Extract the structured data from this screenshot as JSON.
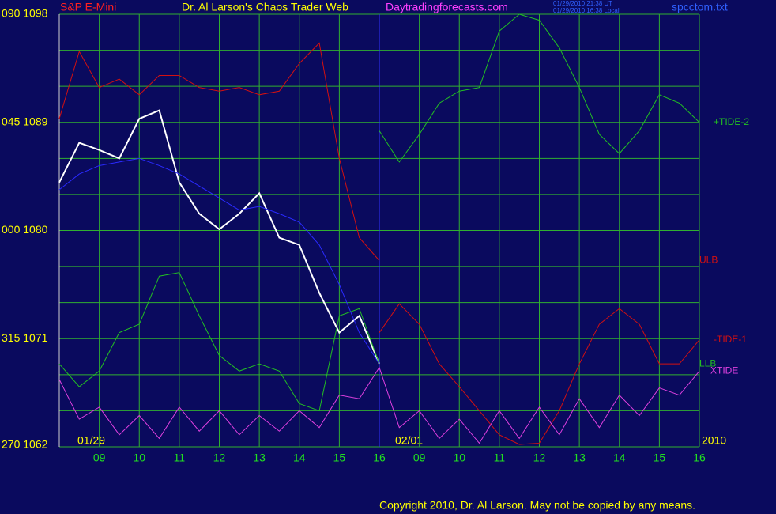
{
  "chart_data": {
    "type": "line",
    "title": "Dr. Al Larson's Chaos Trader Web",
    "instrument": "S&P E-Mini",
    "site": "Daytradingforecasts.com",
    "timestamps": [
      "01/29/2010 21:38 UT",
      "01/29/2010 16:38 Local"
    ],
    "file": "spcctom.txt",
    "copyright": "Copyright 2010, Dr. Al Larson. May not be copied by any means.",
    "date_labels": [
      "01/29",
      "02/01",
      "2010"
    ],
    "x": [
      0,
      0.5,
      1,
      1.5,
      2,
      2.5,
      3,
      3.5,
      4,
      4.5,
      5,
      5.5,
      6,
      6.5,
      7,
      7.5,
      8,
      8.5,
      9,
      9.5,
      10,
      10.5,
      11,
      11.5,
      12,
      12.5,
      13,
      13.5,
      14,
      14.5,
      15,
      15.5,
      16
    ],
    "xlim": [
      0,
      16
    ],
    "xticks": [
      {
        "value": 1,
        "label": "09"
      },
      {
        "value": 2,
        "label": "10"
      },
      {
        "value": 3,
        "label": "11"
      },
      {
        "value": 4,
        "label": "12"
      },
      {
        "value": 5,
        "label": "13"
      },
      {
        "value": 6,
        "label": "14"
      },
      {
        "value": 7,
        "label": "15"
      },
      {
        "value": 8,
        "label": "16"
      },
      {
        "value": 9,
        "label": "09"
      },
      {
        "value": 10,
        "label": "10"
      },
      {
        "value": 11,
        "label": "11"
      },
      {
        "value": 12,
        "label": "12"
      },
      {
        "value": 13,
        "label": "13"
      },
      {
        "value": 14,
        "label": "14"
      },
      {
        "value": 15,
        "label": "15"
      },
      {
        "value": 16,
        "label": "16"
      }
    ],
    "ylim": [
      1062,
      1098
    ],
    "yticks": [
      {
        "value": 1098,
        "label": "090 1098"
      },
      {
        "value": 1089,
        "label": "045 1089"
      },
      {
        "value": 1080,
        "label": "000 1080"
      },
      {
        "value": 1071,
        "label": "315 1071"
      },
      {
        "value": 1062,
        "label": "270 1062"
      }
    ],
    "ygrid": [
      1062,
      1065,
      1068,
      1071,
      1074,
      1077,
      1080,
      1083,
      1086,
      1089,
      1092,
      1095,
      1098
    ],
    "grid": true,
    "series": [
      {
        "color": "#ffffff",
        "values": [
          1084.0,
          1087.3,
          1086.7,
          1086.0,
          1089.3,
          1090.0,
          1084.0,
          1081.4,
          1080.1,
          1081.4,
          1083.1,
          1079.4,
          1078.8,
          1074.8,
          1071.5,
          1072.9,
          1068.9,
          null,
          null,
          null,
          null,
          null,
          null,
          null,
          null,
          null,
          null,
          null,
          null,
          null,
          null,
          null,
          null
        ]
      },
      {
        "color": "#2a2aff",
        "values": [
          1083.4,
          1084.7,
          1085.4,
          1085.7,
          1086.0,
          1085.4,
          1084.7,
          1083.7,
          1082.7,
          1081.7,
          1082.0,
          1081.4,
          1080.7,
          1078.8,
          1075.5,
          1071.5,
          1068.9,
          null,
          null,
          null,
          null,
          null,
          null,
          null,
          null,
          null,
          null,
          null,
          null,
          null,
          null,
          null,
          null
        ]
      },
      {
        "name": "ULB",
        "color": "#d41010",
        "values": [
          1089.3,
          1094.9,
          1091.9,
          1092.6,
          1091.3,
          1092.9,
          1092.9,
          1091.9,
          1091.6,
          1091.9,
          1091.3,
          1091.6,
          1093.9,
          1095.6,
          1086.0,
          1079.4,
          1077.5,
          null,
          null,
          null,
          null,
          null,
          null,
          null,
          null,
          null,
          null,
          null,
          null,
          null,
          null,
          null,
          null
        ]
      },
      {
        "name": "LLB",
        "color": "#22c022",
        "values": [
          1068.9,
          1067.0,
          1068.3,
          1071.5,
          1072.2,
          1076.2,
          1076.5,
          1072.9,
          1069.6,
          1068.3,
          1068.9,
          1068.3,
          1065.6,
          1065.0,
          1072.9,
          1073.5,
          1068.9,
          null,
          null,
          null,
          null,
          null,
          null,
          null,
          null,
          null,
          null,
          null,
          null,
          null,
          null,
          null,
          null
        ]
      },
      {
        "name": "+TIDE-2",
        "color": "#22c022",
        "values": [
          null,
          null,
          null,
          null,
          null,
          null,
          null,
          null,
          null,
          null,
          null,
          null,
          null,
          null,
          null,
          null,
          1088.3,
          1085.7,
          1088.0,
          1090.6,
          1091.6,
          1091.9,
          1096.6,
          1098.0,
          1097.5,
          1095.2,
          1091.9,
          1088.0,
          1086.4,
          1088.3,
          1091.3,
          1090.6,
          1089.0
        ]
      },
      {
        "name": "-TIDE-1",
        "color": "#d41010",
        "values": [
          null,
          null,
          null,
          null,
          null,
          null,
          null,
          null,
          null,
          null,
          null,
          null,
          null,
          null,
          null,
          null,
          1071.5,
          1073.9,
          1072.2,
          1068.9,
          1067.0,
          1065.0,
          1063.0,
          1062.2,
          1062.3,
          1065.0,
          1068.9,
          1072.2,
          1073.5,
          1072.2,
          1068.9,
          1068.9,
          1070.9
        ]
      },
      {
        "name": "XTIDE",
        "color": "#e040e0",
        "values": [
          1067.6,
          1064.3,
          1065.3,
          1063.0,
          1064.6,
          1062.7,
          1065.3,
          1063.3,
          1065.0,
          1063.0,
          1064.6,
          1063.3,
          1065.0,
          1063.6,
          1066.3,
          1066.0,
          1068.6,
          1063.6,
          1065.0,
          1062.7,
          1064.3,
          1062.3,
          1065.0,
          1062.7,
          1065.3,
          1063.0,
          1066.0,
          1063.6,
          1066.3,
          1064.6,
          1066.9,
          1066.3,
          1068.3
        ]
      }
    ]
  }
}
